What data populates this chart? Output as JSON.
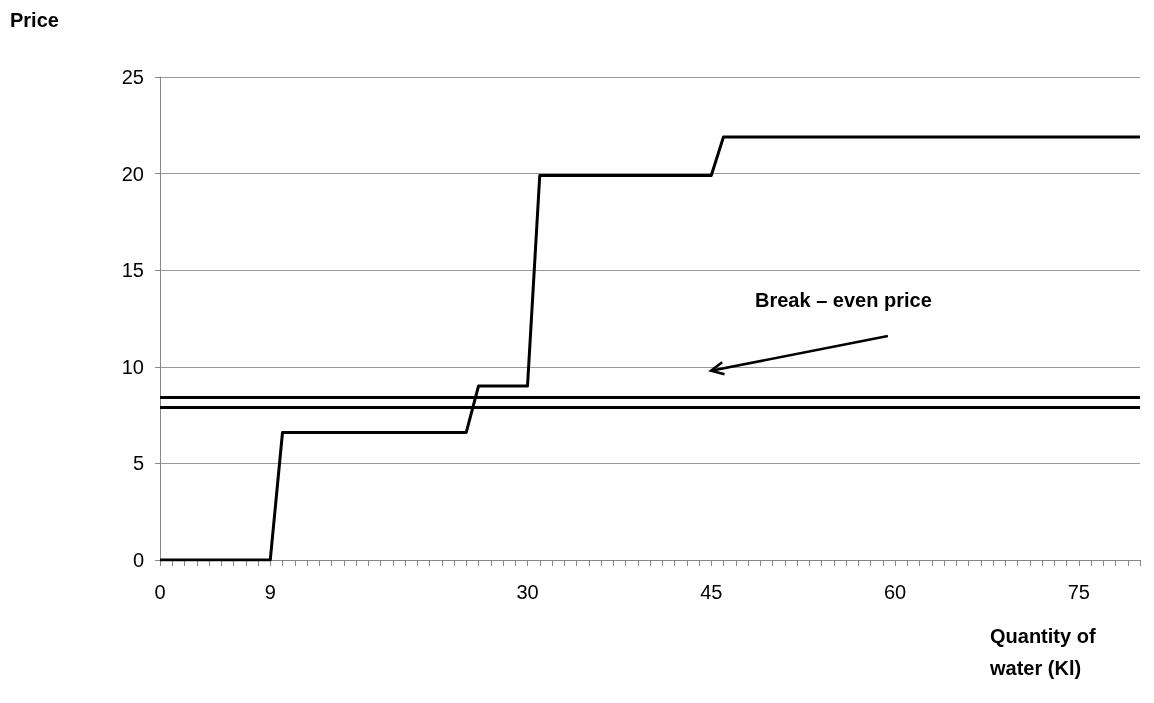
{
  "chart_data": {
    "type": "line",
    "xlabel": "Quantity of water (Kl)",
    "ylabel": "Price",
    "x": [
      0,
      9,
      10,
      25,
      26,
      30,
      31,
      45,
      46,
      80
    ],
    "series": [
      {
        "color": "#000000",
        "values": [
          0,
          0,
          6.6,
          6.6,
          9,
          9,
          19.9,
          19.9,
          21.9,
          21.9
        ]
      }
    ],
    "xlim": [
      0,
      80
    ],
    "xticks": [
      0,
      {
        "value": 1,
        "label": null
      },
      {
        "value": 2,
        "label": null
      },
      {
        "value": 3,
        "label": null
      },
      {
        "value": 4,
        "label": null
      },
      {
        "value": 5,
        "label": null
      },
      {
        "value": 6,
        "label": null
      },
      {
        "value": 7,
        "label": null
      },
      {
        "value": 8,
        "label": null
      },
      9,
      {
        "value": 10,
        "label": null
      },
      {
        "value": 11,
        "label": null
      },
      {
        "value": 12,
        "label": null
      },
      {
        "value": 13,
        "label": null
      },
      {
        "value": 14,
        "label": null
      },
      {
        "value": 15,
        "label": null
      },
      {
        "value": 16,
        "label": null
      },
      {
        "value": 17,
        "label": null
      },
      {
        "value": 18,
        "label": null
      },
      {
        "value": 19,
        "label": null
      },
      {
        "value": 20,
        "label": null
      },
      {
        "value": 21,
        "label": null
      },
      {
        "value": 22,
        "label": null
      },
      {
        "value": 23,
        "label": null
      },
      {
        "value": 24,
        "label": null
      },
      {
        "value": 25,
        "label": null
      },
      {
        "value": 26,
        "label": null
      },
      {
        "value": 27,
        "label": null
      },
      {
        "value": 28,
        "label": null
      },
      {
        "value": 29,
        "label": null
      },
      30,
      {
        "value": 31,
        "label": null
      },
      {
        "value": 32,
        "label": null
      },
      {
        "value": 33,
        "label": null
      },
      {
        "value": 34,
        "label": null
      },
      {
        "value": 35,
        "label": null
      },
      {
        "value": 36,
        "label": null
      },
      {
        "value": 37,
        "label": null
      },
      {
        "value": 38,
        "label": null
      },
      {
        "value": 39,
        "label": null
      },
      {
        "value": 40,
        "label": null
      },
      {
        "value": 41,
        "label": null
      },
      {
        "value": 42,
        "label": null
      },
      {
        "value": 43,
        "label": null
      },
      {
        "value": 44,
        "label": null
      },
      45,
      {
        "value": 46,
        "label": null
      },
      {
        "value": 47,
        "label": null
      },
      {
        "value": 48,
        "label": null
      },
      {
        "value": 49,
        "label": null
      },
      {
        "value": 50,
        "label": null
      },
      {
        "value": 51,
        "label": null
      },
      {
        "value": 52,
        "label": null
      },
      {
        "value": 53,
        "label": null
      },
      {
        "value": 54,
        "label": null
      },
      {
        "value": 55,
        "label": null
      },
      {
        "value": 56,
        "label": null
      },
      {
        "value": 57,
        "label": null
      },
      {
        "value": 58,
        "label": null
      },
      {
        "value": 59,
        "label": null
      },
      60,
      {
        "value": 61,
        "label": null
      },
      {
        "value": 62,
        "label": null
      },
      {
        "value": 63,
        "label": null
      },
      {
        "value": 64,
        "label": null
      },
      {
        "value": 65,
        "label": null
      },
      {
        "value": 66,
        "label": null
      },
      {
        "value": 67,
        "label": null
      },
      {
        "value": 68,
        "label": null
      },
      {
        "value": 69,
        "label": null
      },
      {
        "value": 70,
        "label": null
      },
      {
        "value": 71,
        "label": null
      },
      {
        "value": 72,
        "label": null
      },
      {
        "value": 73,
        "label": null
      },
      {
        "value": 74,
        "label": null
      },
      75,
      {
        "value": 76,
        "label": null
      },
      {
        "value": 77,
        "label": null
      },
      {
        "value": 78,
        "label": null
      },
      {
        "value": 79,
        "label": null
      },
      {
        "value": 80,
        "label": null
      }
    ],
    "ylim": [
      0,
      25
    ],
    "yticks": [
      0,
      5,
      10,
      15,
      20,
      25
    ],
    "grid": "y",
    "marker": "none",
    "line_style": "solid",
    "ref_lines": [
      {
        "axis": "y",
        "value": 8.4,
        "color": "#000000"
      },
      {
        "axis": "y",
        "value": 7.9,
        "color": "#000000"
      }
    ],
    "annotations": [
      "Break – even price"
    ]
  }
}
